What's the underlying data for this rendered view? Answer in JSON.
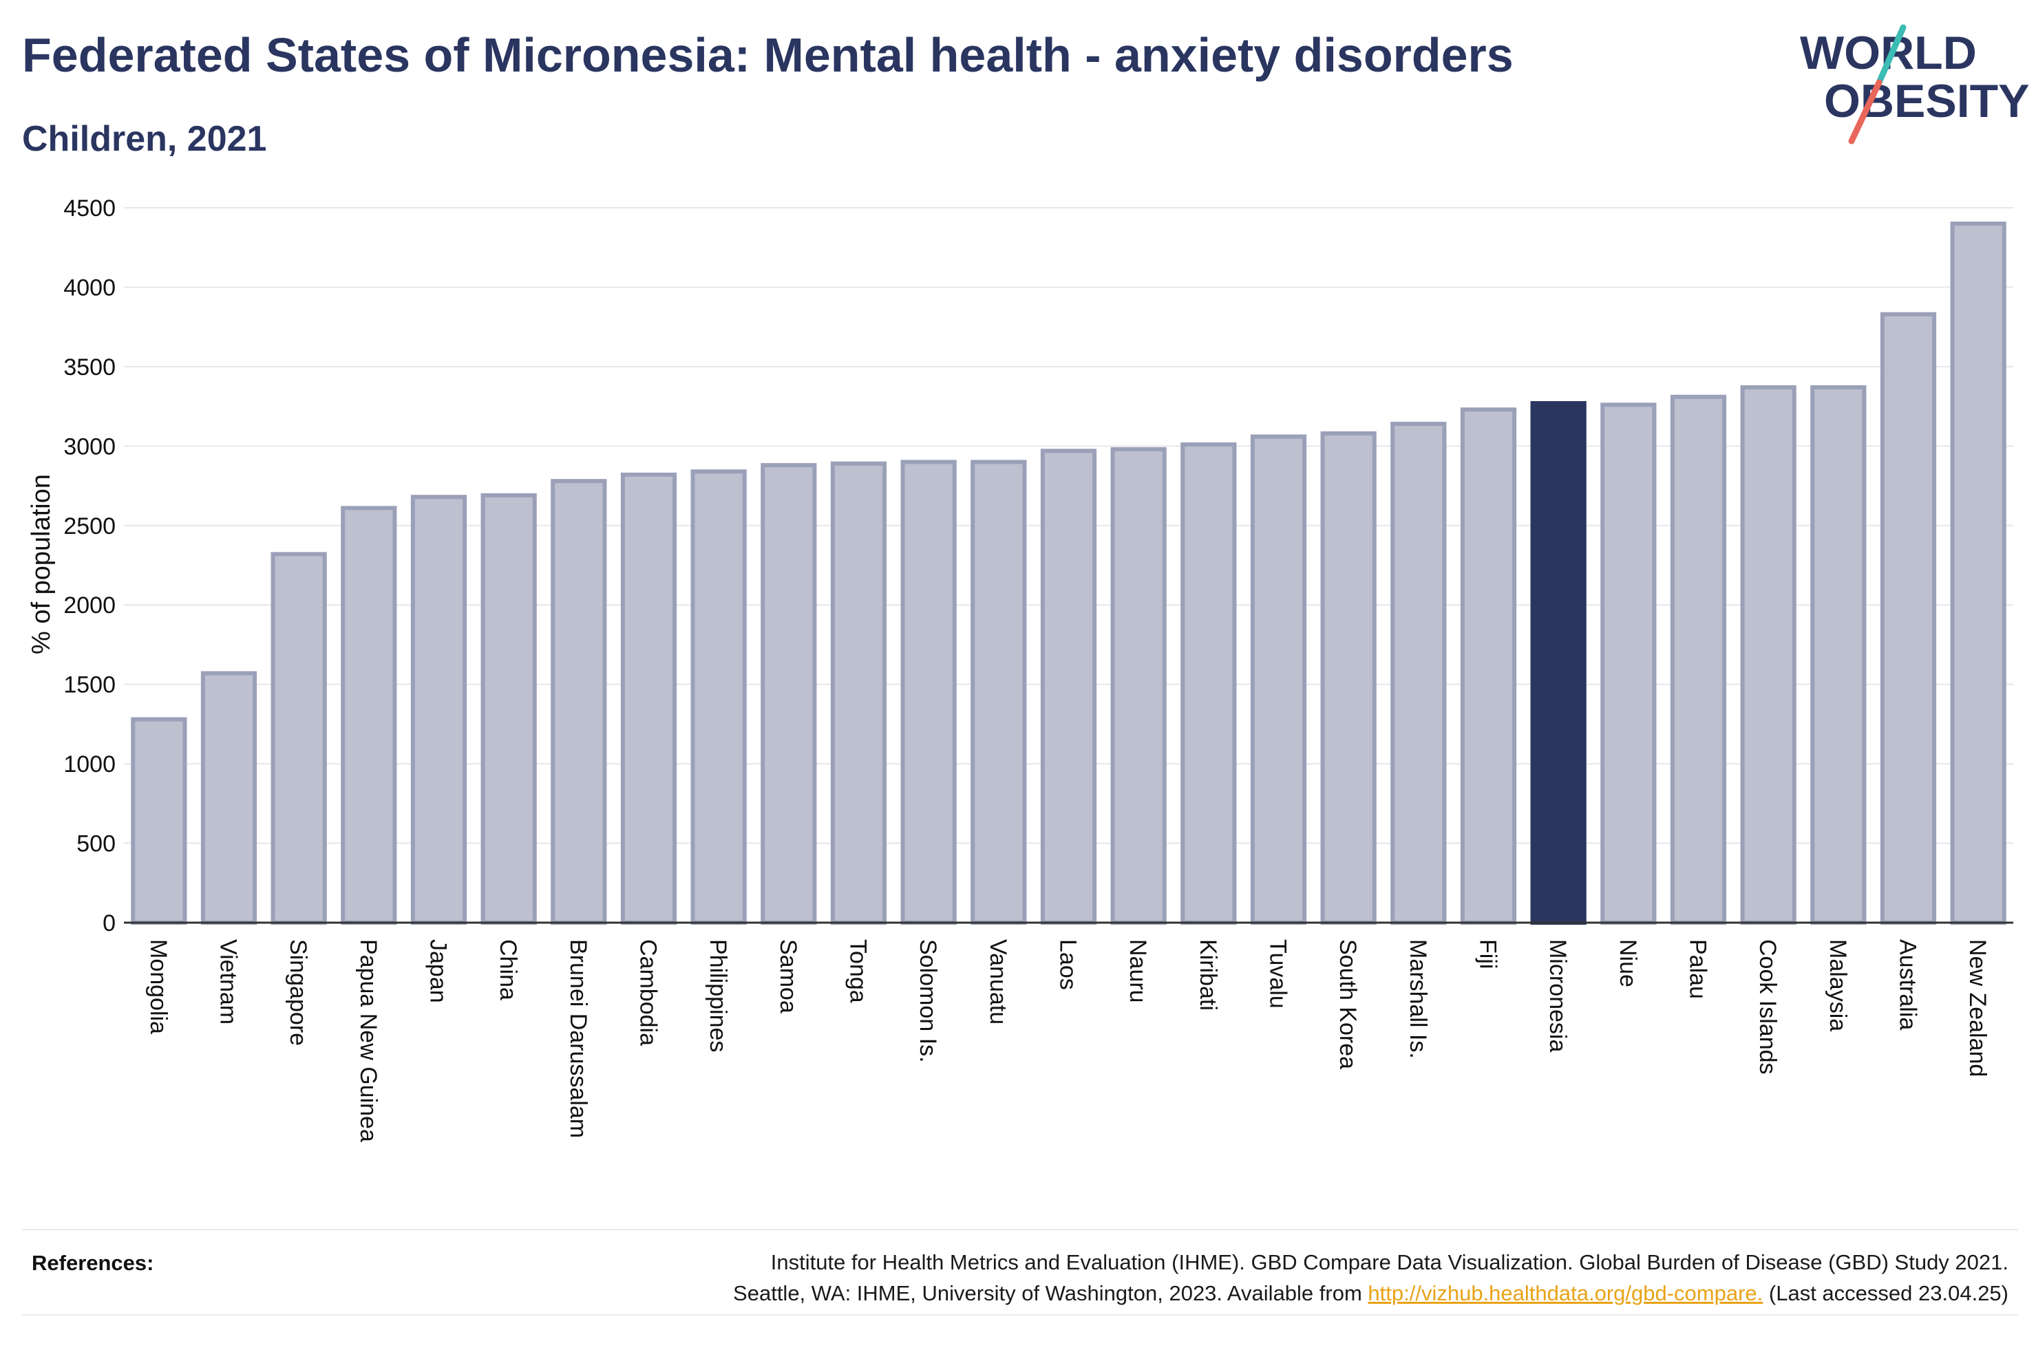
{
  "header": {
    "title": "Federated States of Micronesia: Mental health - anxiety disorders",
    "subtitle": "Children, 2021"
  },
  "logo": {
    "line1": "WORLD",
    "line2": "OBESITY",
    "slash_colors": [
      "#3cbcb4",
      "#e8665a"
    ]
  },
  "references": {
    "label": "References:",
    "line1": "Institute for Health Metrics and Evaluation (IHME). GBD Compare Data Visualization. Global Burden of Disease (GBD) Study 2021.",
    "line2_prefix": "Seattle, WA: IHME, University of Washington, 2023. Available from ",
    "link": "http://vizhub.healthdata.org/gbd-compare.",
    "line2_suffix": " (Last accessed 23.04.25)"
  },
  "colors": {
    "bar": "#bcc0cf",
    "bar_border": "#9aa0b8",
    "highlight": "#2a3560",
    "text": "#2a3560"
  },
  "chart_data": {
    "type": "bar",
    "ylabel": "% of population",
    "xlabel": "",
    "ylim": [
      0,
      4500
    ],
    "yticks": [
      0,
      500,
      1000,
      1500,
      2000,
      2500,
      3000,
      3500,
      4000,
      4500
    ],
    "grid": true,
    "highlight": "Micronesia",
    "categories": [
      "Mongolia",
      "Vietnam",
      "Singapore",
      "Papua New Guinea",
      "Japan",
      "China",
      "Brunei Darussalam",
      "Cambodia",
      "Philippines",
      "Samoa",
      "Tonga",
      "Solomon Is.",
      "Vanuatu",
      "Laos",
      "Nauru",
      "Kiribati",
      "Tuvalu",
      "South Korea",
      "Marshall Is.",
      "Fiji",
      "Micronesia",
      "Niue",
      "Palau",
      "Cook Islands",
      "Malaysia",
      "Australia",
      "New Zealand"
    ],
    "values": [
      1280,
      1570,
      2320,
      2610,
      2680,
      2690,
      2780,
      2820,
      2840,
      2880,
      2890,
      2900,
      2900,
      2970,
      2980,
      3010,
      3060,
      3080,
      3140,
      3230,
      3270,
      3260,
      3310,
      3370,
      3370,
      3830,
      4400
    ]
  }
}
